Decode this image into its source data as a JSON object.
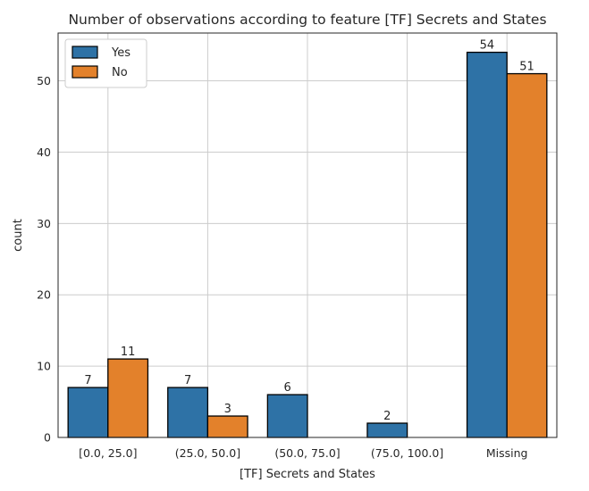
{
  "chart_data": {
    "type": "bar",
    "title": "Number of observations according to feature [TF] Secrets and States",
    "xlabel": "[TF] Secrets and States",
    "ylabel": "count",
    "categories": [
      "[0.0, 25.0]",
      "(25.0, 50.0]",
      "(50.0, 75.0]",
      "(75.0, 100.0]",
      "Missing"
    ],
    "series": [
      {
        "name": "Yes",
        "values": [
          7,
          7,
          6,
          2,
          54
        ],
        "labels": [
          "7",
          "7",
          "6",
          "2",
          "54"
        ],
        "color": "#2e72a6"
      },
      {
        "name": "No",
        "values": [
          11,
          3,
          0,
          0,
          51
        ],
        "labels": [
          "11",
          "3",
          "",
          "",
          "51"
        ],
        "color": "#e3812b"
      }
    ],
    "ylim": [
      0,
      56.7
    ],
    "yticks": [
      0,
      10,
      20,
      30,
      40,
      50
    ],
    "ytick_labels": [
      "0",
      "10",
      "20",
      "30",
      "40",
      "50"
    ],
    "grid": true,
    "legend_position": "top-left"
  }
}
